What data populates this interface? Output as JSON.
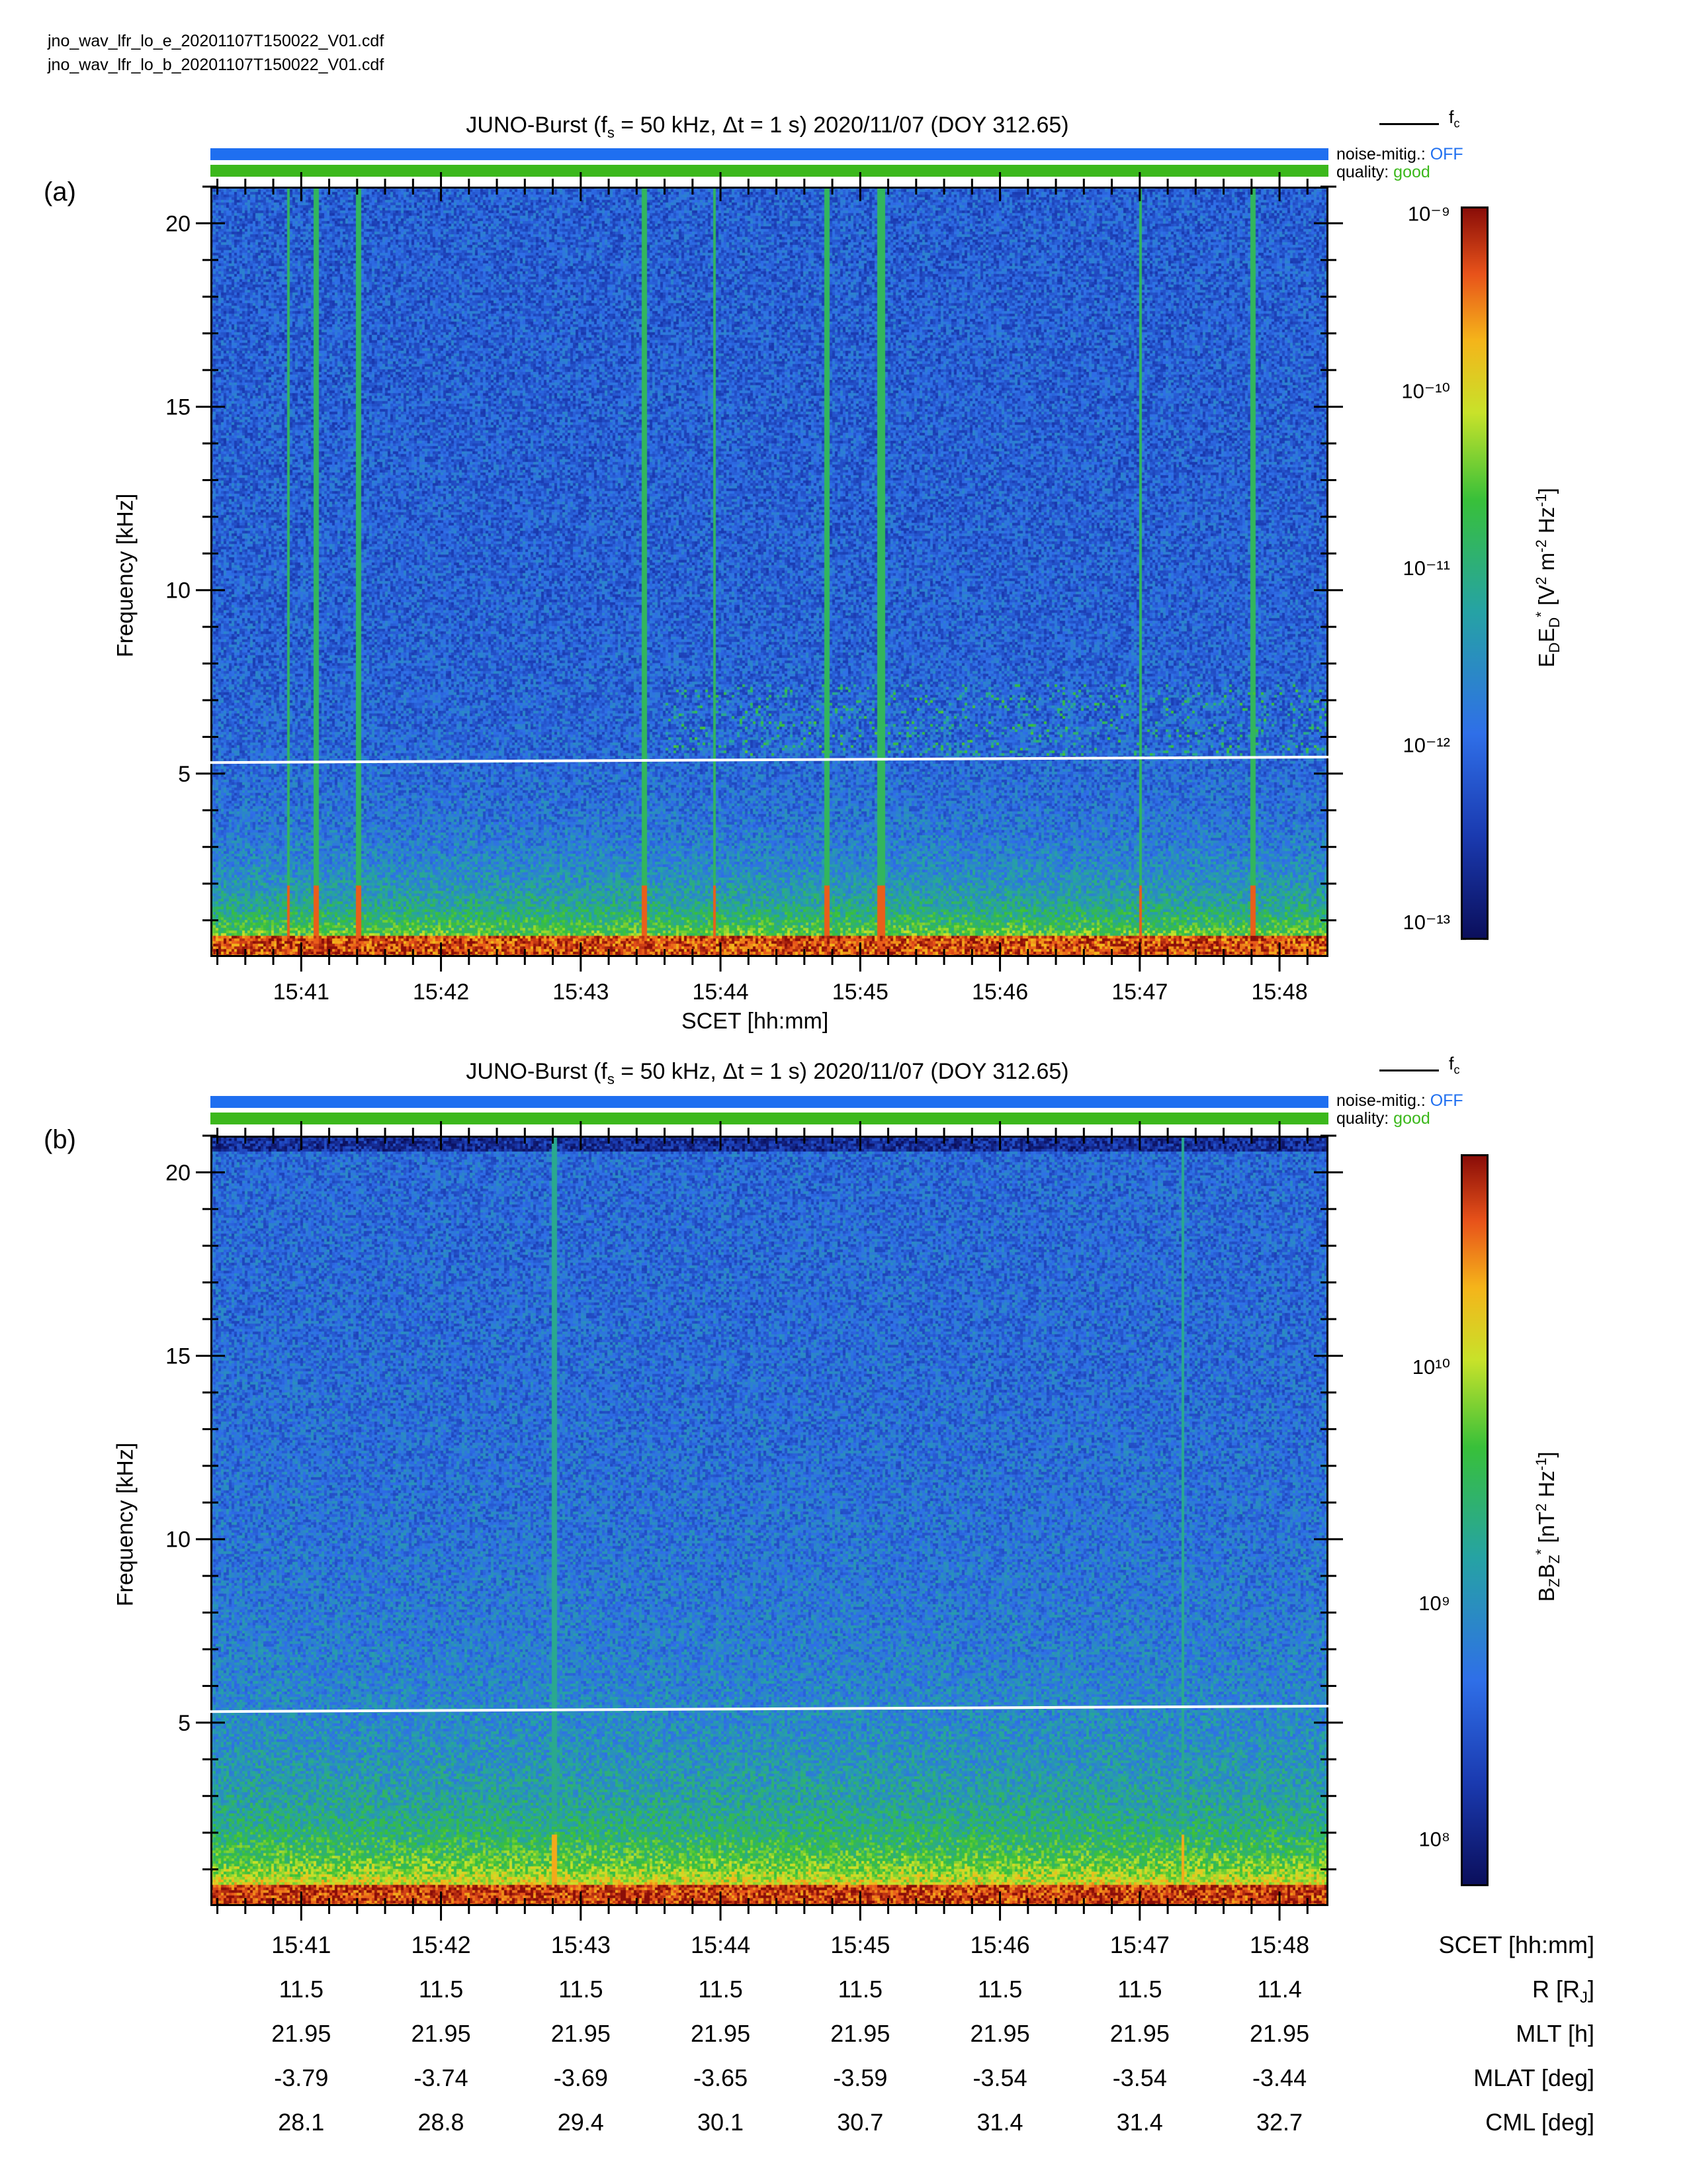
{
  "header": {
    "file_e": "jno_wav_lfr_lo_e_20201107T150022_V01.cdf",
    "file_b": "jno_wav_lfr_lo_b_20201107T150022_V01.cdf"
  },
  "chart_data": [
    {
      "type": "heatmap",
      "panel": "(a)",
      "title": "JUNO-Burst (f_s = 50 kHz, Δt = 1 s)  2020/11/07 (DOY 312.65)",
      "title_parts": {
        "pre": "JUNO-Burst (f",
        "sub": "s",
        "post": " = 50 kHz, Δt = 1 s)  2020/11/07 (DOY 312.65)"
      },
      "legend": "f_c",
      "legend_parts": {
        "base": "f",
        "sub": "c"
      },
      "noise_mitig_label": "noise-mitig.:",
      "noise_mitig_value": "OFF",
      "quality_label": "quality:",
      "quality_value": "good",
      "xlabel": "SCET [hh:mm]",
      "ylabel": "Frequency [kHz]",
      "x_ticks": [
        "15:41",
        "15:42",
        "15:43",
        "15:44",
        "15:45",
        "15:46",
        "15:47",
        "15:48"
      ],
      "x_tick_minutes": [
        41,
        42,
        43,
        44,
        45,
        46,
        47,
        48
      ],
      "xlim_minutes": [
        40.35,
        48.35
      ],
      "y_ticks": [
        "5",
        "10",
        "15",
        "20"
      ],
      "y_tick_values": [
        5,
        10,
        15,
        20
      ],
      "ylim": [
        0,
        21
      ],
      "fc_line": {
        "x": [
          40.35,
          48.35
        ],
        "y": [
          5.3,
          5.45
        ],
        "color": "#ffffff"
      },
      "colorbar_label": "E_D E_D* [V² m⁻² Hz⁻¹]",
      "colorbar_label_parts": [
        "E",
        "D",
        "E",
        "D",
        "*",
        " [V",
        "2",
        " m",
        "-2",
        " Hz",
        "-1",
        "]"
      ],
      "colorbar_scale": "log",
      "colorbar_ticks": [
        "10⁻⁹",
        "10⁻¹⁰",
        "10⁻¹¹",
        "10⁻¹²",
        "10⁻¹³"
      ],
      "colorbar_tick_exponents": [
        -9,
        -10,
        -11,
        -12,
        -13
      ],
      "colorbar_range_exp": [
        -13.1,
        -8.96
      ],
      "bright_lines_minutes": [
        40.9,
        41.1,
        41.4,
        43.45,
        43.95,
        44.75,
        45.12,
        45.15,
        47.0,
        47.8
      ],
      "colors": {
        "noise_bar": "#1f6ff0",
        "quality_bar": "#3cb81c",
        "fc": "#ffffff"
      }
    },
    {
      "type": "heatmap",
      "panel": "(b)",
      "title": "JUNO-Burst (f_s = 50 kHz, Δt = 1 s)  2020/11/07 (DOY 312.65)",
      "title_parts": {
        "pre": "JUNO-Burst (f",
        "sub": "s",
        "post": " = 50 kHz, Δt = 1 s)  2020/11/07 (DOY 312.65)"
      },
      "legend": "f_c",
      "legend_parts": {
        "base": "f",
        "sub": "c"
      },
      "noise_mitig_label": "noise-mitig.:",
      "noise_mitig_value": "OFF",
      "quality_label": "quality:",
      "quality_value": "good",
      "ylabel": "Frequency [kHz]",
      "x_tick_minutes": [
        41,
        42,
        43,
        44,
        45,
        46,
        47,
        48
      ],
      "xlim_minutes": [
        40.35,
        48.35
      ],
      "y_ticks": [
        "5",
        "10",
        "15",
        "20"
      ],
      "y_tick_values": [
        5,
        10,
        15,
        20
      ],
      "ylim": [
        0,
        21
      ],
      "fc_line": {
        "x": [
          40.35,
          48.35
        ],
        "y": [
          5.3,
          5.45
        ],
        "color": "#ffffff"
      },
      "colorbar_label": "B_Z B_Z* [nT² Hz⁻¹]",
      "colorbar_label_parts": [
        "B",
        "Z",
        "B",
        "Z",
        "*",
        " [nT",
        "2",
        " Hz",
        "-1",
        "]"
      ],
      "colorbar_scale": "log",
      "colorbar_ticks": [
        "10¹⁰",
        "10⁹",
        "10⁸"
      ],
      "colorbar_tick_exponents": [
        10,
        9,
        8
      ],
      "colorbar_range_exp": [
        7.8,
        10.9
      ],
      "bright_lines_minutes": [
        42.8,
        47.3
      ],
      "colors": {
        "noise_bar": "#1f6ff0",
        "quality_bar": "#3cb81c",
        "fc": "#ffffff"
      }
    }
  ],
  "ephemeris": {
    "columns": [
      "15:41",
      "15:42",
      "15:43",
      "15:44",
      "15:45",
      "15:46",
      "15:47",
      "15:48"
    ],
    "rows": [
      {
        "label": "SCET [hh:mm]",
        "values": [
          "15:41",
          "15:42",
          "15:43",
          "15:44",
          "15:45",
          "15:46",
          "15:47",
          "15:48"
        ]
      },
      {
        "label": "R [R_J]",
        "values": [
          "11.5",
          "11.5",
          "11.5",
          "11.5",
          "11.5",
          "11.5",
          "11.5",
          "11.4"
        ]
      },
      {
        "label": "MLT [h]",
        "values": [
          "21.95",
          "21.95",
          "21.95",
          "21.95",
          "21.95",
          "21.95",
          "21.95",
          "21.95"
        ]
      },
      {
        "label": "MLAT [deg]",
        "values": [
          "-3.79",
          "-3.74",
          "-3.69",
          "-3.65",
          "-3.59",
          "-3.54",
          "-3.54",
          "-3.44"
        ]
      },
      {
        "label": "CML [deg]",
        "values": [
          "28.1",
          "28.8",
          "29.4",
          "30.1",
          "30.7",
          "31.4",
          "31.4",
          "32.7"
        ]
      }
    ],
    "r_label_parts": {
      "pre": "R [R",
      "sub": "J",
      "post": "]"
    }
  }
}
